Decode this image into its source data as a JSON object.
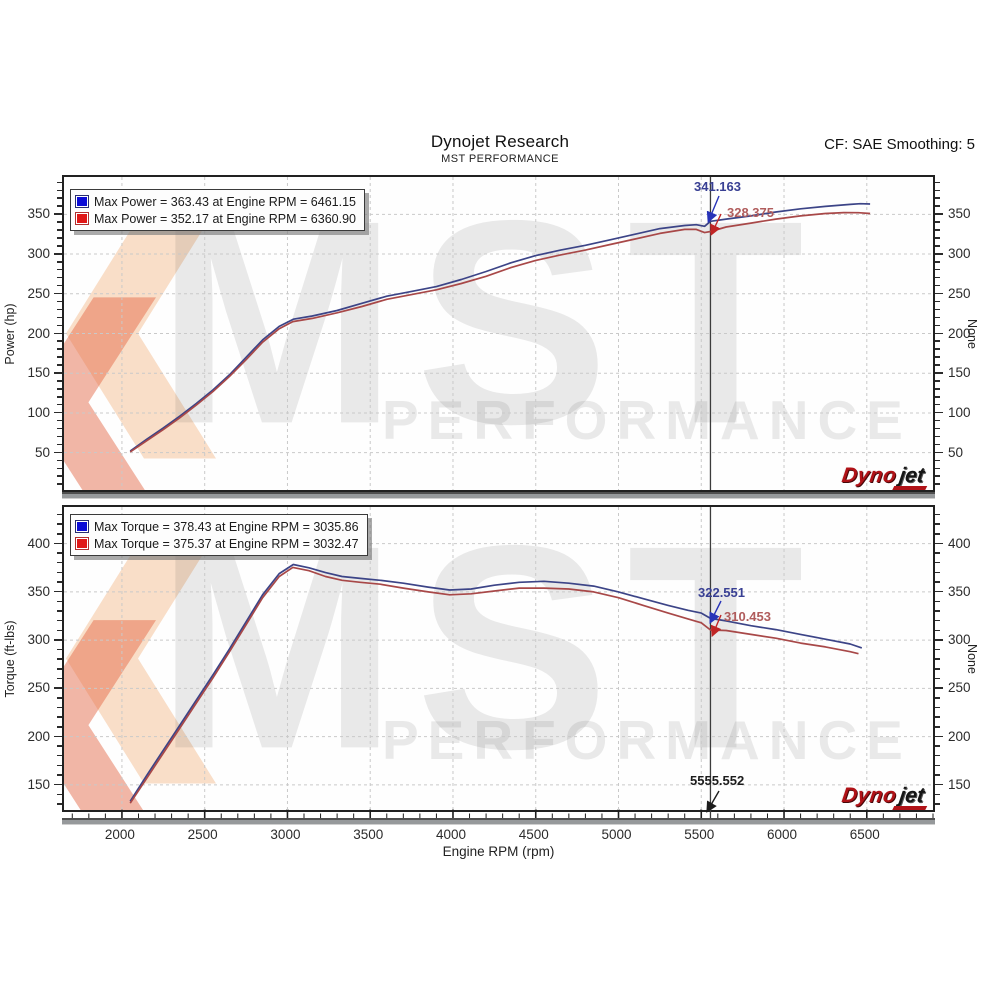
{
  "header": {
    "title": "Dynojet Research",
    "subtitle": "MST PERFORMANCE",
    "correction": "CF: SAE Smoothing: 5"
  },
  "watermark": {
    "text": "MST",
    "subtext": "PERFORMANCE"
  },
  "logo": {
    "part1": "Dyno",
    "part2": "jet"
  },
  "chart_data": {
    "type": "line",
    "xlabel": "Engine RPM (rpm)",
    "xlim": [
      1650,
      6900
    ],
    "xticks": [
      2000,
      2500,
      3000,
      3500,
      4000,
      4500,
      5000,
      5500,
      6000,
      6500
    ],
    "x_minor_step": 100,
    "grid": "dashed",
    "cursor": {
      "rpm": 5555.552,
      "label": "5555.552"
    },
    "panels": [
      {
        "ylabel": "Power (hp)",
        "ylabel_right": "None",
        "ylim": [
          3,
          397
        ],
        "yticks": [
          50,
          100,
          150,
          200,
          250,
          300,
          350
        ],
        "y_minor_step": 10,
        "legend": [
          {
            "color": "#0b0bd6",
            "label": "Max Power = 363.43 at Engine RPM = 6461.15"
          },
          {
            "color": "#e01616",
            "label": "Max Power = 352.17 at Engine RPM = 6360.90"
          }
        ],
        "cursor_values": [
          {
            "label": "341.163",
            "series": "blue"
          },
          {
            "label": "328.375",
            "series": "red"
          }
        ],
        "series": [
          {
            "name": "Max Power 363.43 run",
            "color": "#3c4487",
            "points": [
              [
                2050,
                52
              ],
              [
                2150,
                67
              ],
              [
                2250,
                81
              ],
              [
                2350,
                96
              ],
              [
                2450,
                112
              ],
              [
                2550,
                129
              ],
              [
                2650,
                148
              ],
              [
                2750,
                170
              ],
              [
                2850,
                192
              ],
              [
                2950,
                209
              ],
              [
                3035,
                218
              ],
              [
                3150,
                222
              ],
              [
                3300,
                229
              ],
              [
                3450,
                238
              ],
              [
                3600,
                247
              ],
              [
                3750,
                253
              ],
              [
                3900,
                259
              ],
              [
                4050,
                268
              ],
              [
                4200,
                278
              ],
              [
                4350,
                289
              ],
              [
                4500,
                298
              ],
              [
                4650,
                305
              ],
              [
                4800,
                311
              ],
              [
                4950,
                318
              ],
              [
                5100,
                325
              ],
              [
                5250,
                332
              ],
              [
                5400,
                336
              ],
              [
                5470,
                337
              ],
              [
                5520,
                335
              ],
              [
                5556,
                341.2
              ],
              [
                5650,
                344
              ],
              [
                5800,
                348
              ],
              [
                5950,
                353
              ],
              [
                6100,
                357
              ],
              [
                6250,
                360
              ],
              [
                6400,
                362.5
              ],
              [
                6461,
                363.4
              ],
              [
                6520,
                363
              ]
            ]
          },
          {
            "name": "Max Power 352.17 run",
            "color": "#a84848",
            "points": [
              [
                2050,
                51
              ],
              [
                2150,
                65
              ],
              [
                2250,
                79
              ],
              [
                2350,
                94
              ],
              [
                2450,
                110
              ],
              [
                2550,
                127
              ],
              [
                2650,
                146
              ],
              [
                2750,
                167
              ],
              [
                2850,
                189
              ],
              [
                2950,
                206
              ],
              [
                3032,
                215
              ],
              [
                3150,
                219
              ],
              [
                3300,
                226
              ],
              [
                3450,
                234
              ],
              [
                3600,
                243
              ],
              [
                3750,
                249
              ],
              [
                3900,
                255
              ],
              [
                4050,
                263
              ],
              [
                4200,
                272
              ],
              [
                4350,
                283
              ],
              [
                4500,
                292
              ],
              [
                4650,
                299
              ],
              [
                4800,
                305
              ],
              [
                4950,
                312
              ],
              [
                5100,
                319
              ],
              [
                5250,
                326
              ],
              [
                5400,
                331
              ],
              [
                5470,
                331
              ],
              [
                5520,
                327
              ],
              [
                5556,
                328.4
              ],
              [
                5650,
                334
              ],
              [
                5800,
                339
              ],
              [
                5950,
                344
              ],
              [
                6100,
                348
              ],
              [
                6250,
                351
              ],
              [
                6361,
                352.2
              ],
              [
                6450,
                352
              ],
              [
                6520,
                351
              ]
            ]
          }
        ]
      },
      {
        "ylabel": "Torque (ft-lbs)",
        "ylabel_right": "None",
        "ylim": [
          124,
          438
        ],
        "yticks": [
          150,
          200,
          250,
          300,
          350,
          400
        ],
        "y_minor_step": 10,
        "legend": [
          {
            "color": "#0b0bd6",
            "label": "Max Torque = 378.43 at Engine RPM = 3035.86"
          },
          {
            "color": "#e01616",
            "label": "Max Torque = 375.37 at Engine RPM = 3032.47"
          }
        ],
        "cursor_values": [
          {
            "label": "322.551",
            "series": "blue"
          },
          {
            "label": "310.453",
            "series": "red"
          }
        ],
        "series": [
          {
            "name": "Max Torque 378.43 run",
            "color": "#3c4487",
            "points": [
              [
                2050,
                133
              ],
              [
                2150,
                160
              ],
              [
                2250,
                186
              ],
              [
                2350,
                212
              ],
              [
                2450,
                238
              ],
              [
                2550,
                264
              ],
              [
                2650,
                291
              ],
              [
                2750,
                319
              ],
              [
                2850,
                347
              ],
              [
                2950,
                369
              ],
              [
                3035,
                378.4
              ],
              [
                3130,
                375
              ],
              [
                3230,
                370
              ],
              [
                3330,
                366
              ],
              [
                3440,
                364
              ],
              [
                3560,
                362
              ],
              [
                3700,
                359
              ],
              [
                3850,
                355
              ],
              [
                3980,
                352
              ],
              [
                4110,
                353
              ],
              [
                4250,
                357
              ],
              [
                4400,
                360
              ],
              [
                4550,
                361
              ],
              [
                4700,
                359
              ],
              [
                4850,
                356
              ],
              [
                5000,
                350
              ],
              [
                5150,
                343
              ],
              [
                5300,
                336
              ],
              [
                5420,
                331
              ],
              [
                5500,
                328
              ],
              [
                5556,
                322.6
              ],
              [
                5650,
                320
              ],
              [
                5800,
                315
              ],
              [
                5950,
                311
              ],
              [
                6100,
                306
              ],
              [
                6250,
                301
              ],
              [
                6400,
                296
              ],
              [
                6470,
                292
              ]
            ]
          },
          {
            "name": "Max Torque 375.37 run",
            "color": "#a84848",
            "points": [
              [
                2050,
                131
              ],
              [
                2150,
                157
              ],
              [
                2250,
                183
              ],
              [
                2350,
                209
              ],
              [
                2450,
                235
              ],
              [
                2550,
                261
              ],
              [
                2650,
                288
              ],
              [
                2750,
                316
              ],
              [
                2850,
                344
              ],
              [
                2950,
                366
              ],
              [
                3032,
                375.4
              ],
              [
                3130,
                372
              ],
              [
                3230,
                366
              ],
              [
                3330,
                362
              ],
              [
                3440,
                360
              ],
              [
                3560,
                358
              ],
              [
                3700,
                354
              ],
              [
                3850,
                350
              ],
              [
                3980,
                347
              ],
              [
                4110,
                348
              ],
              [
                4250,
                351
              ],
              [
                4400,
                354
              ],
              [
                4550,
                354
              ],
              [
                4700,
                353
              ],
              [
                4850,
                350
              ],
              [
                5000,
                344
              ],
              [
                5150,
                336
              ],
              [
                5300,
                328
              ],
              [
                5420,
                322
              ],
              [
                5500,
                318
              ],
              [
                5556,
                310.5
              ],
              [
                5650,
                310
              ],
              [
                5800,
                306
              ],
              [
                5950,
                302
              ],
              [
                6100,
                297
              ],
              [
                6250,
                293
              ],
              [
                6400,
                288
              ],
              [
                6450,
                286
              ]
            ]
          }
        ]
      }
    ]
  }
}
